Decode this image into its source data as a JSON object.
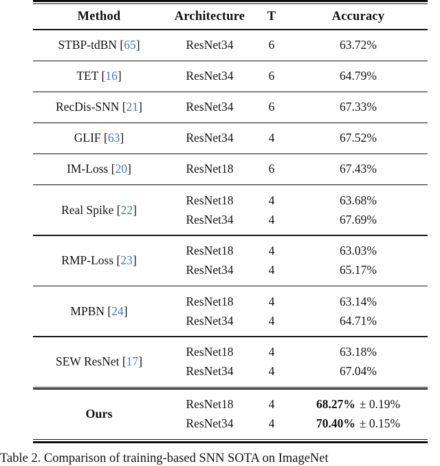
{
  "colors": {
    "citation_link": "#3b78bc",
    "text": "#111111",
    "background": "#ffffff"
  },
  "punctuation": {
    "bracket_open": "[",
    "bracket_close": "]"
  },
  "table": {
    "columns": {
      "method": "Method",
      "architecture": "Architecture",
      "t": "T",
      "accuracy": "Accuracy"
    },
    "groups": [
      {
        "method": "STBP-tdBN",
        "cite": "65",
        "rows": [
          {
            "arch": "ResNet34",
            "t": "6",
            "acc": "63.72%"
          }
        ]
      },
      {
        "method": "TET",
        "cite": "16",
        "rows": [
          {
            "arch": "ResNet34",
            "t": "6",
            "acc": "64.79%"
          }
        ]
      },
      {
        "method": "RecDis-SNN",
        "cite": "21",
        "rows": [
          {
            "arch": "ResNet34",
            "t": "6",
            "acc": "67.33%"
          }
        ]
      },
      {
        "method": "GLIF",
        "cite": "63",
        "rows": [
          {
            "arch": "ResNet34",
            "t": "4",
            "acc": "67.52%"
          }
        ]
      },
      {
        "method": "IM-Loss",
        "cite": "20",
        "rows": [
          {
            "arch": "ResNet18",
            "t": "6",
            "acc": "67.43%"
          }
        ]
      },
      {
        "method": "Real Spike",
        "cite": "22",
        "rows": [
          {
            "arch": "ResNet18",
            "t": "4",
            "acc": "63.68%"
          },
          {
            "arch": "ResNet34",
            "t": "4",
            "acc": "67.69%"
          }
        ]
      },
      {
        "method": "RMP-Loss",
        "cite": "23",
        "rows": [
          {
            "arch": "ResNet18",
            "t": "4",
            "acc": "63.03%"
          },
          {
            "arch": "ResNet34",
            "t": "4",
            "acc": "65.17%"
          }
        ]
      },
      {
        "method": "MPBN",
        "cite": "24",
        "rows": [
          {
            "arch": "ResNet18",
            "t": "4",
            "acc": "63.14%"
          },
          {
            "arch": "ResNet34",
            "t": "4",
            "acc": "64.71%"
          }
        ]
      },
      {
        "method": "SEW ResNet",
        "cite": "17",
        "rows": [
          {
            "arch": "ResNet18",
            "t": "4",
            "acc": "63.18%"
          },
          {
            "arch": "ResNet34",
            "t": "4",
            "acc": "67.04%"
          }
        ]
      },
      {
        "method": "Ours",
        "rows": [
          {
            "arch": "ResNet18",
            "t": "4",
            "acc_bold": "68.27%",
            "acc_rest": "± 0.19%"
          },
          {
            "arch": "ResNet34",
            "t": "4",
            "acc_bold": "70.40%",
            "acc_rest": "± 0.15%"
          }
        ]
      }
    ],
    "caption": "Table 2. Comparison of training-based SNN SOTA on ImageNet"
  }
}
